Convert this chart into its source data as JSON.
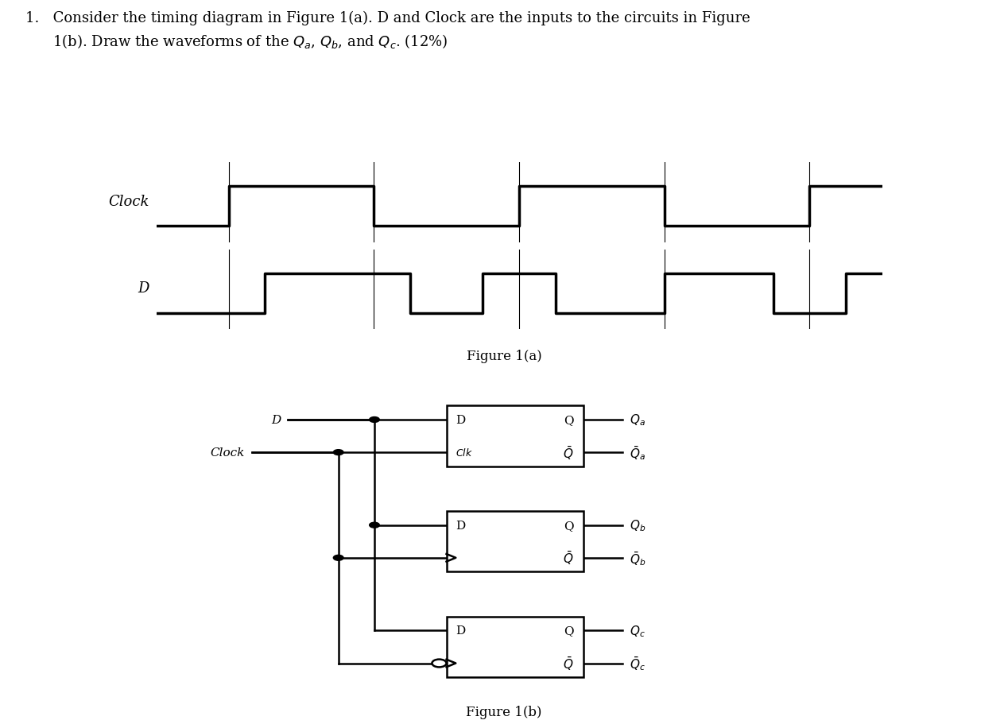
{
  "background": "#ffffff",
  "lw_signal": 2.5,
  "lw_circuit": 1.8,
  "clock_x": [
    0,
    1,
    1,
    3,
    3,
    5,
    5,
    7,
    7,
    9,
    9,
    10
  ],
  "clock_y": [
    0,
    0,
    1,
    1,
    0,
    0,
    1,
    1,
    0,
    0,
    1,
    1
  ],
  "d_x": [
    0,
    1.5,
    1.5,
    3.5,
    3.5,
    4.5,
    4.5,
    5.5,
    5.5,
    7.0,
    7.0,
    8.5,
    8.5,
    9.5,
    9.5,
    10
  ],
  "d_y": [
    0,
    0,
    1,
    1,
    0,
    0,
    1,
    1,
    0,
    0,
    1,
    1,
    0,
    0,
    1,
    1
  ],
  "vline_x": [
    1,
    3,
    5,
    7,
    9
  ],
  "title_line1": "1.   Consider the timing diagram in Figure 1(a). D and Clock are the inputs to the circuits in Figure",
  "title_line2": "      1(b). Draw the waveforms of the $Q_a$, $Q_b$, and $Q_c$. (12%)",
  "fig1a_caption": "Figure 1(a)",
  "fig1b_caption": "Figure 1(b)",
  "font_title": 13,
  "font_label": 13,
  "font_caption": 12,
  "font_circuit": 11,
  "font_clk_label": 10
}
